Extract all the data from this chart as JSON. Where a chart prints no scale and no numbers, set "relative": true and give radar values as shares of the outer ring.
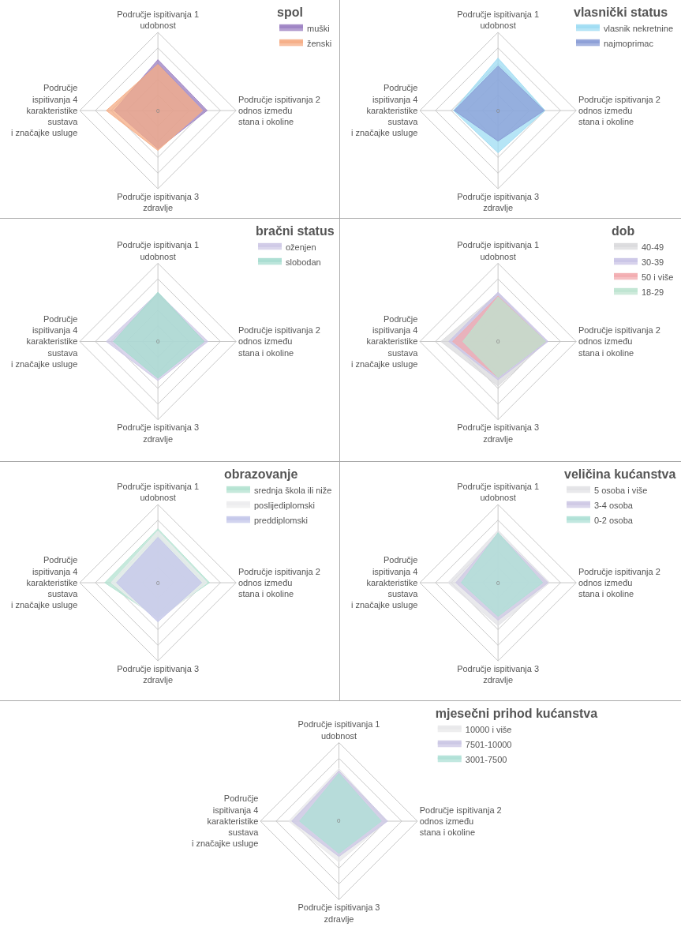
{
  "chart_data": [
    {
      "type": "radar",
      "legend_title": "spol",
      "relative": true,
      "legend": "top right",
      "grid": true,
      "annotations": [
        "0"
      ],
      "categories": [
        "Područje ispitivanja 1\nudobnost",
        "Područje ispitivanja 2\nodnos između\nstana i okoline",
        "Područje ispitivanja 3\nzdravlje",
        "Područje\nispitivanja 4\nkarakteristike\nsustava\ni značajke usluge"
      ],
      "series": [
        {
          "name": "muški",
          "color": "#9b7fc2",
          "values": [
            0.65,
            0.63,
            0.49,
            0.56
          ]
        },
        {
          "name": "ženski",
          "color": "#f5ac84",
          "values": [
            0.59,
            0.57,
            0.51,
            0.66
          ]
        }
      ]
    },
    {
      "type": "radar",
      "legend_title": "vlasnički status",
      "relative": true,
      "legend": "top right",
      "grid": true,
      "annotations": [
        "0"
      ],
      "categories": [
        "Područje ispitivanja 1\nudobnost",
        "Područje ispitivanja 2\nodnos između\nstana i okoline",
        "Područje ispitivanja 3\nzdravlje",
        "Područje\nispitivanja 4\nkarakteristike\nsustava\ni značajke usluge"
      ],
      "series": [
        {
          "name": "vlasnik nekretnine",
          "color": "#9ddcf3",
          "values": [
            0.67,
            0.6,
            0.54,
            0.57
          ]
        },
        {
          "name": "najmoprimac",
          "color": "#8a9cd6",
          "values": [
            0.57,
            0.59,
            0.39,
            0.56
          ]
        }
      ]
    },
    {
      "type": "radar",
      "legend_title": "bračni status",
      "relative": true,
      "legend": "top right",
      "grid": true,
      "annotations": [
        "0"
      ],
      "categories": [
        "Područje ispitivanja 1\nudobnost",
        "Područje ispitivanja 2\nodnos između\nstana i okoline",
        "Područje ispitivanja 3\nzdravlje",
        "Područje\nispitivanja 4\nkarakteristike\nsustava\ni značajke usluge"
      ],
      "series": [
        {
          "name": "oženjen",
          "color": "#cdc8e6",
          "values": [
            0.62,
            0.64,
            0.5,
            0.66
          ]
        },
        {
          "name": "slobodan",
          "color": "#a6dccf",
          "values": [
            0.63,
            0.59,
            0.47,
            0.57
          ]
        }
      ]
    },
    {
      "type": "radar",
      "legend_title": "dob",
      "relative": true,
      "legend": "top right",
      "grid": true,
      "annotations": [
        "0"
      ],
      "categories": [
        "Područje ispitivanja 1\nudobnost",
        "Područje ispitivanja 2\nodnos između\nstana i okoline",
        "Područje ispitivanja 3\nzdravlje",
        "Područje\nispitivanja 4\nkarakteristike\nsustava\ni značajke usluge"
      ],
      "series": [
        {
          "name": "40-49",
          "color": "#d9d9dc",
          "values": [
            0.62,
            0.62,
            0.57,
            0.73
          ]
        },
        {
          "name": "30-39",
          "color": "#c9c3e6",
          "values": [
            0.63,
            0.64,
            0.49,
            0.63
          ]
        },
        {
          "name": "50 i više",
          "color": "#f2aaae",
          "values": [
            0.58,
            0.61,
            0.46,
            0.58
          ]
        },
        {
          "name": "18-29",
          "color": "#bde3cf",
          "values": [
            0.57,
            0.61,
            0.46,
            0.45
          ]
        }
      ]
    },
    {
      "type": "radar",
      "legend_title": "obrazovanje",
      "relative": true,
      "legend": "top right",
      "grid": true,
      "annotations": [
        "0"
      ],
      "categories": [
        "Područje ispitivanja 1\nudobnost",
        "Područje ispitivanja 2\nodnos između\nstana i okoline",
        "Područje ispitivanja 3\nzdravlje",
        "Područje\nispitivanja 4\nkarakteristike\nsustava\ni značajke usluge"
      ],
      "series": [
        {
          "name": "srednja škola ili niže",
          "color": "#b3e2d0",
          "values": [
            0.69,
            0.66,
            0.45,
            0.68
          ]
        },
        {
          "name": "poslijediplomski",
          "color": "#ececee",
          "values": [
            0.66,
            0.63,
            0.48,
            0.6
          ]
        },
        {
          "name": "preddiplomski",
          "color": "#c3c6ea",
          "values": [
            0.58,
            0.56,
            0.5,
            0.53
          ]
        }
      ]
    },
    {
      "type": "radar",
      "legend_title": "veličina kućanstva",
      "relative": true,
      "legend": "top right",
      "grid": true,
      "annotations": [
        "0"
      ],
      "categories": [
        "Područje ispitivanja 1\nudobnost",
        "Područje ispitivanja 2\nodnos između\nstana i okoline",
        "Područje ispitivanja 3\nzdravlje",
        "Područje\nispitivanja 4\nkarakteristike\nsustava\ni značajke usluge"
      ],
      "series": [
        {
          "name": "5 osoba i više",
          "color": "#e2e2e5",
          "values": [
            0.67,
            0.66,
            0.55,
            0.64
          ]
        },
        {
          "name": "3-4 osoba",
          "color": "#cdc8e4",
          "values": [
            0.63,
            0.64,
            0.48,
            0.54
          ]
        },
        {
          "name": "0-2 osoba",
          "color": "#ade0d5",
          "values": [
            0.64,
            0.57,
            0.43,
            0.47
          ]
        }
      ]
    },
    {
      "type": "radar",
      "legend_title": "mjesečni prihod kućanstva",
      "relative": true,
      "legend": "top right",
      "grid": true,
      "annotations": [
        "0"
      ],
      "categories": [
        "Područje ispitivanja 1\nudobnost",
        "Područje ispitivanja 2\nodnos između\nstana i okoline",
        "Područje ispitivanja 3\nzdravlje",
        "Područje\nispitivanja 4\nkarakteristike\nsustava\ni značajke usluge"
      ],
      "series": [
        {
          "name": "10000 i više",
          "color": "#e8e8ea",
          "values": [
            0.67,
            0.61,
            0.52,
            0.64
          ]
        },
        {
          "name": "7501-10000",
          "color": "#cbc6e4",
          "values": [
            0.64,
            0.62,
            0.45,
            0.6
          ]
        },
        {
          "name": "3001-7500",
          "color": "#aee0d6",
          "values": [
            0.61,
            0.54,
            0.41,
            0.5
          ]
        }
      ]
    }
  ]
}
